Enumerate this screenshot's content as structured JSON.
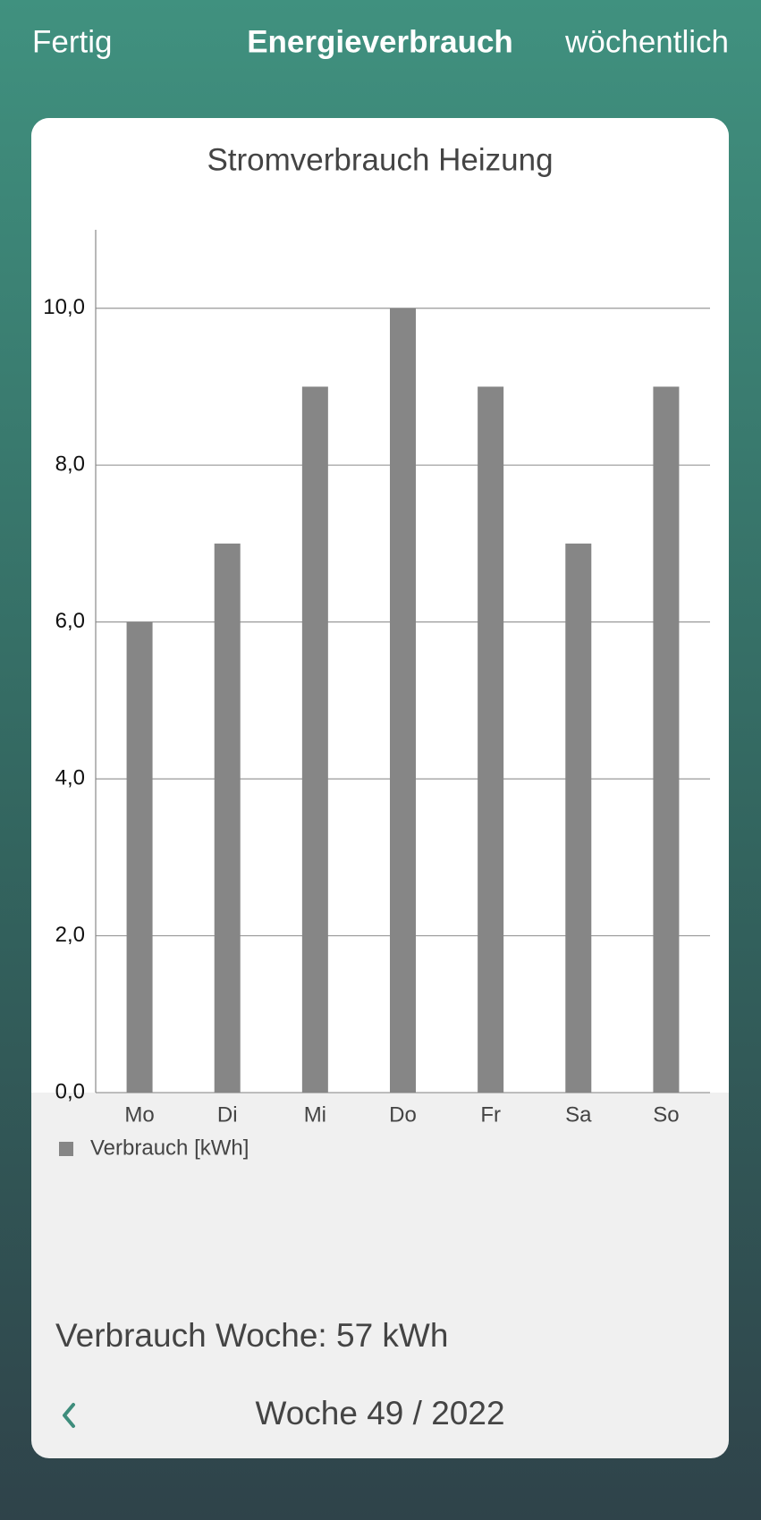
{
  "header": {
    "left": "Fertig",
    "title": "Energieverbrauch",
    "right": "wöchentlich"
  },
  "chart_data": {
    "type": "bar",
    "title": "Stromverbrauch Heizung",
    "categories": [
      "Mo",
      "Di",
      "Mi",
      "Do",
      "Fr",
      "Sa",
      "So"
    ],
    "series": [
      {
        "name": "Verbrauch [kWh]",
        "color": "#868686",
        "values": [
          6,
          7,
          9,
          10,
          9,
          7,
          9
        ]
      }
    ],
    "ylim": [
      0,
      11
    ],
    "yticks": [
      {
        "value": 0,
        "label": "0,0"
      },
      {
        "value": 2,
        "label": "2,0"
      },
      {
        "value": 4,
        "label": "4,0"
      },
      {
        "value": 6,
        "label": "6,0"
      },
      {
        "value": 8,
        "label": "8,0"
      },
      {
        "value": 10,
        "label": "10,0"
      }
    ],
    "grid": true
  },
  "footer": {
    "summary": "Verbrauch Woche: 57 kWh",
    "period": "Woche 49 / 2022"
  }
}
